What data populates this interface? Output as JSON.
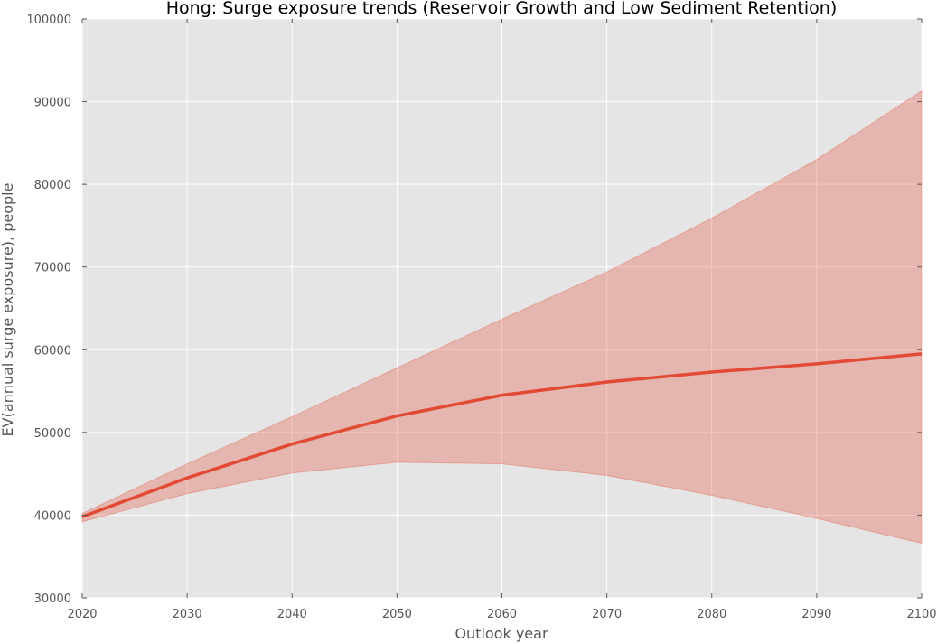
{
  "chart_data": {
    "type": "area",
    "title": "Hong: Surge exposure trends (Reservoir Growth and Low Sediment Retention)",
    "xlabel": "Outlook year",
    "ylabel": "EV(annual surge exposure), people",
    "xlim": [
      2020,
      2100
    ],
    "ylim": [
      30000,
      100000
    ],
    "xticks": [
      "2020",
      "2030",
      "2040",
      "2050",
      "2060",
      "2070",
      "2080",
      "2090",
      "2100"
    ],
    "yticks": [
      "30000",
      "40000",
      "50000",
      "60000",
      "70000",
      "80000",
      "90000",
      "100000"
    ],
    "x": [
      2020,
      2030,
      2040,
      2050,
      2060,
      2070,
      2080,
      2090,
      2100
    ],
    "series": [
      {
        "values": [
          39800,
          44500,
          48600,
          52000,
          54500,
          56100,
          57300,
          58300,
          59500
        ],
        "color": "#e24a33"
      }
    ],
    "band": {
      "lower": [
        39200,
        42600,
        45100,
        46400,
        46200,
        44800,
        42400,
        39600,
        36600
      ],
      "upper": [
        40200,
        46200,
        51900,
        57800,
        63700,
        69400,
        75900,
        83000,
        91300
      ],
      "color": "#e24a33",
      "opacity": 0.3
    },
    "grid": true,
    "background": "#e5e5e5",
    "gridline_color": "#ffffff"
  }
}
